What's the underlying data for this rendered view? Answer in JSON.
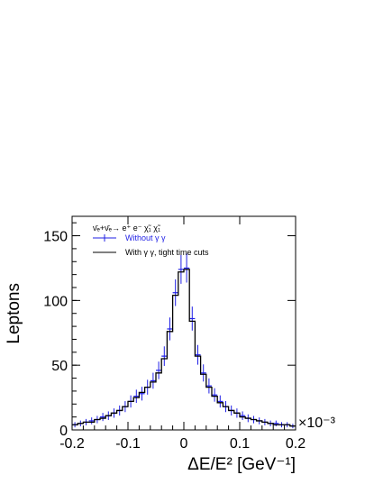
{
  "chart_data": {
    "type": "line",
    "title": "",
    "xlabel": "ΔE/E² [GeV⁻¹]",
    "ylabel": "Leptons",
    "x_multiplier": "×10⁻³",
    "xlim": [
      -0.2,
      0.2
    ],
    "ylim": [
      0,
      165
    ],
    "x_ticks": [
      -0.2,
      -0.1,
      0,
      0.1,
      0.2
    ],
    "x_tick_labels": [
      "-0.2",
      "-0.1",
      "0",
      "0.1",
      "0.2"
    ],
    "y_ticks": [
      0,
      50,
      100,
      150
    ],
    "y_tick_labels": [
      "0",
      "50",
      "100",
      "150"
    ],
    "legend_title": "ν̄ₑ+ν̄ₑ→ e⁺ e⁻ χ̃₁ χ̃₁",
    "legend_position": "top-left",
    "series": [
      {
        "name": "Without γ γ",
        "color": "#1f1fe6",
        "style": "errorbar",
        "x": [
          -0.195,
          -0.185,
          -0.175,
          -0.165,
          -0.155,
          -0.145,
          -0.135,
          -0.125,
          -0.115,
          -0.105,
          -0.095,
          -0.085,
          -0.075,
          -0.065,
          -0.055,
          -0.045,
          -0.035,
          -0.025,
          -0.015,
          -0.005,
          0.005,
          0.015,
          0.025,
          0.035,
          0.045,
          0.055,
          0.065,
          0.075,
          0.085,
          0.095,
          0.105,
          0.115,
          0.125,
          0.135,
          0.145,
          0.155,
          0.165,
          0.175,
          0.185,
          0.195
        ],
        "y": [
          4,
          5,
          6,
          7,
          8,
          10,
          11,
          13,
          15,
          18,
          22,
          26,
          28,
          33,
          38,
          46,
          57,
          78,
          106,
          124,
          125,
          86,
          58,
          44,
          34,
          27,
          22,
          18,
          15,
          13,
          11,
          9,
          8,
          7,
          6,
          5,
          5,
          4,
          4,
          3
        ]
      },
      {
        "name": "With γ γ, tight time cuts",
        "color": "#000000",
        "style": "step",
        "x": [
          -0.195,
          -0.185,
          -0.175,
          -0.165,
          -0.155,
          -0.145,
          -0.135,
          -0.125,
          -0.115,
          -0.105,
          -0.095,
          -0.085,
          -0.075,
          -0.065,
          -0.055,
          -0.045,
          -0.035,
          -0.025,
          -0.015,
          -0.005,
          0.005,
          0.015,
          0.025,
          0.035,
          0.045,
          0.055,
          0.065,
          0.075,
          0.085,
          0.095,
          0.105,
          0.115,
          0.125,
          0.135,
          0.145,
          0.155,
          0.165,
          0.175,
          0.185,
          0.195
        ],
        "y": [
          4,
          5,
          6,
          6,
          8,
          9,
          11,
          13,
          15,
          18,
          22,
          25,
          29,
          33,
          37,
          44,
          55,
          76,
          104,
          122,
          124,
          84,
          57,
          43,
          33,
          26,
          21,
          18,
          15,
          13,
          10,
          9,
          8,
          7,
          6,
          5,
          4,
          4,
          4,
          3
        ]
      }
    ]
  }
}
